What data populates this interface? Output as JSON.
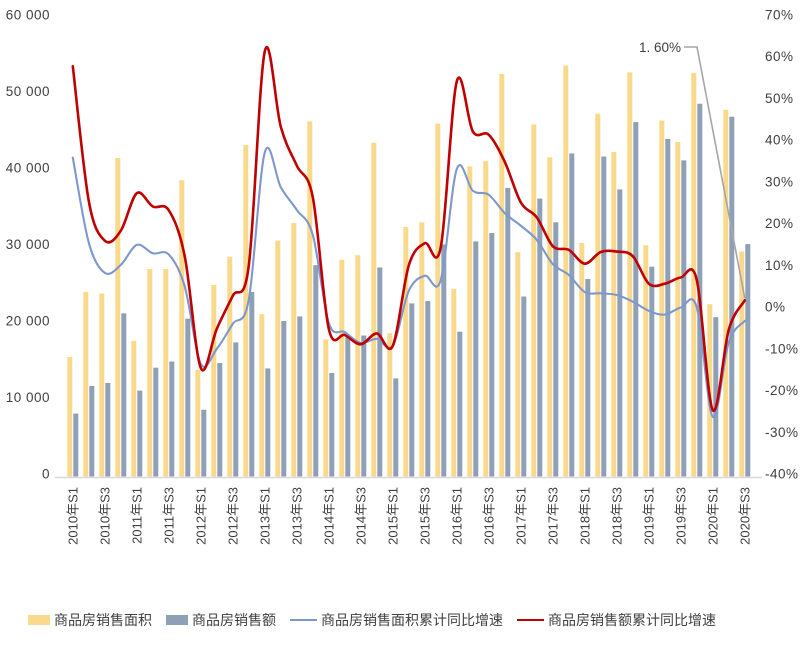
{
  "chart_data": {
    "type": "combo-bar-line",
    "categories": [
      "2010年S1",
      "2010年S2",
      "2010年S3",
      "2010年S4",
      "2011年S1",
      "2011年S2",
      "2011年S3",
      "2011年S4",
      "2012年S1",
      "2012年S2",
      "2012年S3",
      "2012年S4",
      "2013年S1",
      "2013年S2",
      "2013年S3",
      "2013年S4",
      "2014年S1",
      "2014年S2",
      "2014年S3",
      "2014年S4",
      "2015年S1",
      "2015年S2",
      "2015年S3",
      "2015年S4",
      "2016年S1",
      "2016年S2",
      "2016年S3",
      "2016年S4",
      "2017年S1",
      "2017年S2",
      "2017年S3",
      "2017年S4",
      "2018年S1",
      "2018年S2",
      "2018年S3",
      "2018年S4",
      "2019年S1",
      "2019年S2",
      "2019年S3",
      "2019年S4",
      "2020年S1",
      "2020年S2",
      "2020年S3"
    ],
    "x_tick_labels": [
      "2010年S1",
      "2010年S3",
      "2011年S1",
      "2011年S3",
      "2012年S1",
      "2012年S3",
      "2013年S1",
      "2013年S3",
      "2014年S1",
      "2014年S3",
      "2015年S1",
      "2015年S3",
      "2016年S1",
      "2016年S3",
      "2017年S1",
      "2017年S3",
      "2018年S1",
      "2018年S3",
      "2019年S1",
      "2019年S3",
      "2020年S1",
      "2020年S3"
    ],
    "series": [
      {
        "name": "商品房销售面积",
        "type": "bar",
        "axis": "left",
        "color": "#F9D98B",
        "values": [
          15300,
          23800,
          23600,
          41300,
          17400,
          26800,
          26800,
          38400,
          13600,
          24700,
          28400,
          43000,
          20900,
          30500,
          32800,
          46100,
          17600,
          28000,
          28600,
          43300,
          18400,
          32300,
          32900,
          45800,
          24200,
          40200,
          40900,
          52300,
          29000,
          45700,
          41400,
          53400,
          30200,
          47100,
          42100,
          52500,
          29900,
          46200,
          43400,
          52400,
          22200,
          47600,
          29100
        ]
      },
      {
        "name": "商品房销售额",
        "type": "bar",
        "axis": "left",
        "color": "#8DA0B6",
        "values": [
          7900,
          11500,
          11900,
          21000,
          10900,
          13900,
          14700,
          20300,
          8400,
          14500,
          17200,
          23800,
          13800,
          20000,
          20600,
          27300,
          13200,
          17900,
          18100,
          27000,
          12500,
          22300,
          22600,
          30000,
          18600,
          30400,
          31500,
          37400,
          23200,
          36000,
          32900,
          41900,
          25500,
          41500,
          37200,
          46000,
          27100,
          43800,
          41000,
          48400,
          20500,
          46700,
          30050
        ]
      },
      {
        "name": "商品房销售面积累计同比增速",
        "type": "line",
        "axis": "right",
        "color": "#7D97CF",
        "values": [
          35.8,
          15.4,
          8.2,
          10.1,
          14.9,
          12.9,
          12.6,
          4.9,
          -13.6,
          -10.0,
          -4.0,
          1.8,
          37.1,
          28.7,
          23.3,
          17.3,
          -3.8,
          -6.0,
          -8.6,
          -7.6,
          -9.2,
          3.9,
          7.5,
          6.5,
          33.1,
          27.9,
          26.9,
          22.5,
          19.5,
          16.1,
          10.3,
          7.7,
          3.6,
          3.3,
          2.9,
          1.3,
          -0.9,
          -1.8,
          -0.1,
          -0.1,
          -26.3,
          -8.4,
          -3.3
        ]
      },
      {
        "name": "商品房销售额累计同比增速",
        "type": "line",
        "axis": "right",
        "color": "#C00000",
        "values": [
          57.7,
          25.4,
          15.9,
          18.3,
          27.3,
          24.1,
          23.2,
          12.1,
          -14.6,
          -5.2,
          2.7,
          10.0,
          61.3,
          43.2,
          33.9,
          26.3,
          -5.2,
          -6.7,
          -8.9,
          -6.3,
          -9.3,
          10.0,
          15.3,
          14.4,
          54.1,
          42.1,
          41.3,
          34.8,
          25.1,
          21.5,
          14.6,
          13.7,
          10.4,
          13.2,
          13.3,
          12.2,
          5.6,
          5.6,
          7.1,
          6.5,
          -24.7,
          -5.4,
          1.6
        ]
      }
    ],
    "y_axis_left": {
      "min": 0,
      "max": 60000,
      "step": 10000,
      "labels": [
        "0",
        "10 000",
        "20 000",
        "30 000",
        "40 000",
        "50 000",
        "60 000"
      ]
    },
    "y_axis_right": {
      "min": -40,
      "max": 70,
      "step": 10,
      "labels": [
        "-40%",
        "-30%",
        "-20%",
        "-10%",
        "0%",
        "10%",
        "20%",
        "30%",
        "40%",
        "50%",
        "60%",
        "70%"
      ]
    },
    "grid": false,
    "annotation": {
      "text": "1. 60%",
      "points_to": "last value of 商品房销售额累计同比增速"
    }
  },
  "legend": {
    "items": [
      {
        "label": "商品房销售面积",
        "type": "bar",
        "color": "#F9D98B"
      },
      {
        "label": "商品房销售额",
        "type": "bar",
        "color": "#8DA0B6"
      },
      {
        "label": "商品房销售面积累计同比增速",
        "type": "line",
        "color": "#7D97CF"
      },
      {
        "label": "商品房销售额累计同比增速",
        "type": "line",
        "color": "#C00000"
      }
    ]
  },
  "colors": {
    "bar_area": "#F9D98B",
    "bar_amount": "#8DA0B6",
    "line_area_growth": "#7D97CF",
    "line_amount_growth": "#C00000",
    "axis_text": "#404040",
    "axis_line": "#D9D9D9",
    "callout_line": "#A6A6A6"
  }
}
